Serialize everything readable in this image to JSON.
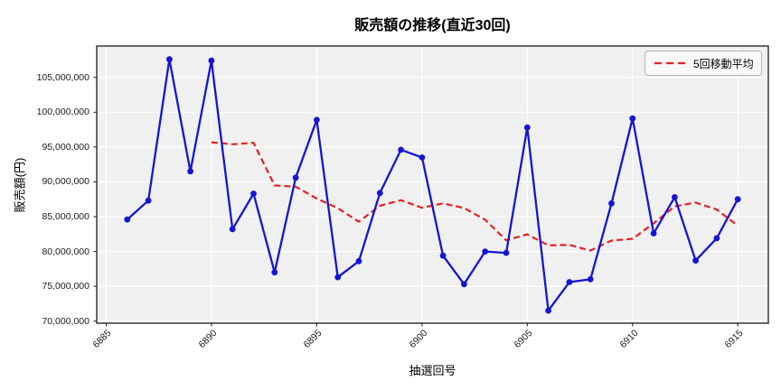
{
  "chart": {
    "title": "販売額の推移(直近30回)",
    "xlabel": "抽選回号",
    "ylabel": "販売額(円)",
    "legend_label": "5回移動平均"
  },
  "colors": {
    "sales_line": "#1515d5",
    "moving_avg": "#e62222",
    "plot_bg": "#f0f0f0",
    "grid": "#ffffff",
    "spine": "#1a1a1a"
  },
  "chart_data": {
    "type": "line",
    "title": "販売額の推移(直近30回)",
    "xlabel": "抽選回号",
    "ylabel": "販売額(円)",
    "grid": true,
    "legend_position": "upper right",
    "x": [
      6886,
      6887,
      6888,
      6889,
      6890,
      6891,
      6892,
      6893,
      6894,
      6895,
      6896,
      6897,
      6898,
      6899,
      6900,
      6901,
      6902,
      6903,
      6904,
      6905,
      6906,
      6907,
      6908,
      6909,
      6910,
      6911,
      6912,
      6913,
      6914,
      6915
    ],
    "x_ticks": [
      6885,
      6890,
      6895,
      6900,
      6905,
      6910,
      6915
    ],
    "y_ticks": [
      70000000,
      75000000,
      80000000,
      85000000,
      90000000,
      95000000,
      100000000,
      105000000
    ],
    "xlim": [
      6884.55,
      6916.45
    ],
    "ylim": [
      69700000,
      109500000
    ],
    "series": [
      {
        "name": "販売額",
        "style": "solid",
        "markers": true,
        "color_key": "sales_line",
        "values": [
          84600000,
          87300000,
          107600000,
          91500000,
          107400000,
          83200000,
          88300000,
          77000000,
          90600000,
          98900000,
          76300000,
          78600000,
          88400000,
          94600000,
          93500000,
          79400000,
          75300000,
          80000000,
          79800000,
          97800000,
          71500000,
          75600000,
          76000000,
          86900000,
          99100000,
          82600000,
          87800000,
          78700000,
          81900000,
          87500000
        ]
      },
      {
        "name": "5回移動平均",
        "style": "dashed",
        "markers": false,
        "color_key": "moving_avg",
        "x_start": 6890,
        "values": [
          95680000,
          95400000,
          95600000,
          89480000,
          89300000,
          87600000,
          86220000,
          84280000,
          86560000,
          87360000,
          86280000,
          86900000,
          86240000,
          84560000,
          81600000,
          82460000,
          80880000,
          80940000,
          80140000,
          81560000,
          81820000,
          84040000,
          86480000,
          87020000,
          86020000,
          83700000
        ]
      }
    ]
  }
}
